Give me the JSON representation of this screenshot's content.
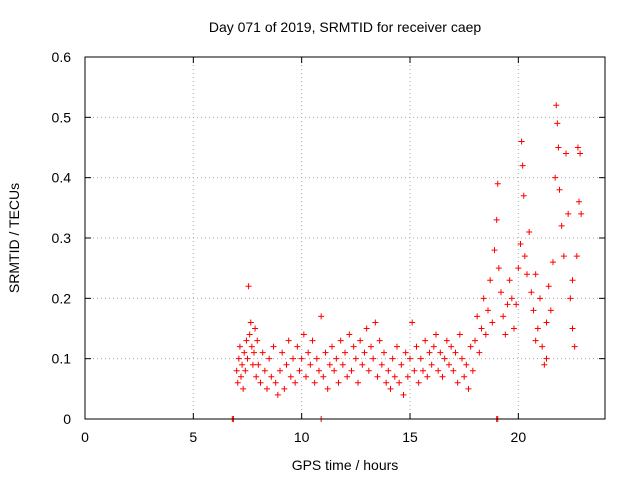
{
  "chart_data": {
    "type": "scatter",
    "title": "Day 071 of 2019, SRMTID for receiver caep",
    "xlabel": "GPS time / hours",
    "ylabel": "SRMTID / TECUs",
    "xlim": [
      0,
      24
    ],
    "ylim": [
      0,
      0.6
    ],
    "xticks": [
      0,
      5,
      10,
      15,
      20
    ],
    "yticks": [
      0,
      0.1,
      0.2,
      0.3,
      0.4,
      0.5,
      0.6
    ],
    "grid": true,
    "marker": "+",
    "colors": {
      "series": "#ff0000",
      "grid": "#aaaaaa",
      "axis": "#000000"
    },
    "series": [
      {
        "name": "SRMTID",
        "points": [
          [
            6.8,
            0.0
          ],
          [
            6.85,
            0.0
          ],
          [
            10.9,
            0.0
          ],
          [
            19.0,
            0.0
          ],
          [
            19.05,
            0.0
          ],
          [
            7.0,
            0.08
          ],
          [
            7.05,
            0.06
          ],
          [
            7.1,
            0.1
          ],
          [
            7.15,
            0.12
          ],
          [
            7.2,
            0.07
          ],
          [
            7.25,
            0.09
          ],
          [
            7.3,
            0.05
          ],
          [
            7.35,
            0.11
          ],
          [
            7.4,
            0.08
          ],
          [
            7.45,
            0.13
          ],
          [
            7.5,
            0.1
          ],
          [
            7.55,
            0.22
          ],
          [
            7.6,
            0.14
          ],
          [
            7.65,
            0.16
          ],
          [
            7.7,
            0.12
          ],
          [
            7.75,
            0.09
          ],
          [
            7.8,
            0.11
          ],
          [
            7.85,
            0.15
          ],
          [
            7.9,
            0.07
          ],
          [
            7.95,
            0.13
          ],
          [
            8.0,
            0.09
          ],
          [
            8.1,
            0.06
          ],
          [
            8.2,
            0.11
          ],
          [
            8.3,
            0.08
          ],
          [
            8.4,
            0.05
          ],
          [
            8.5,
            0.1
          ],
          [
            8.6,
            0.07
          ],
          [
            8.7,
            0.12
          ],
          [
            8.8,
            0.06
          ],
          [
            8.9,
            0.04
          ],
          [
            9.0,
            0.08
          ],
          [
            9.1,
            0.11
          ],
          [
            9.2,
            0.05
          ],
          [
            9.3,
            0.09
          ],
          [
            9.4,
            0.13
          ],
          [
            9.5,
            0.07
          ],
          [
            9.6,
            0.1
          ],
          [
            9.7,
            0.06
          ],
          [
            9.8,
            0.12
          ],
          [
            9.9,
            0.08
          ],
          [
            10.0,
            0.1
          ],
          [
            10.1,
            0.14
          ],
          [
            10.2,
            0.07
          ],
          [
            10.3,
            0.11
          ],
          [
            10.4,
            0.09
          ],
          [
            10.5,
            0.13
          ],
          [
            10.6,
            0.06
          ],
          [
            10.7,
            0.1
          ],
          [
            10.8,
            0.08
          ],
          [
            10.9,
            0.17
          ],
          [
            11.0,
            0.07
          ],
          [
            11.1,
            0.11
          ],
          [
            11.2,
            0.05
          ],
          [
            11.3,
            0.09
          ],
          [
            11.4,
            0.12
          ],
          [
            11.5,
            0.08
          ],
          [
            11.6,
            0.1
          ],
          [
            11.7,
            0.06
          ],
          [
            11.8,
            0.13
          ],
          [
            11.9,
            0.09
          ],
          [
            12.0,
            0.11
          ],
          [
            12.1,
            0.07
          ],
          [
            12.2,
            0.14
          ],
          [
            12.3,
            0.08
          ],
          [
            12.4,
            0.12
          ],
          [
            12.5,
            0.1
          ],
          [
            12.6,
            0.06
          ],
          [
            12.7,
            0.13
          ],
          [
            12.8,
            0.09
          ],
          [
            12.9,
            0.11
          ],
          [
            13.0,
            0.15
          ],
          [
            13.1,
            0.08
          ],
          [
            13.2,
            0.12
          ],
          [
            13.3,
            0.1
          ],
          [
            13.4,
            0.16
          ],
          [
            13.5,
            0.07
          ],
          [
            13.6,
            0.13
          ],
          [
            13.7,
            0.09
          ],
          [
            13.8,
            0.11
          ],
          [
            13.9,
            0.06
          ],
          [
            14.0,
            0.08
          ],
          [
            14.1,
            0.05
          ],
          [
            14.2,
            0.1
          ],
          [
            14.3,
            0.07
          ],
          [
            14.4,
            0.12
          ],
          [
            14.5,
            0.06
          ],
          [
            14.6,
            0.09
          ],
          [
            14.7,
            0.04
          ],
          [
            14.8,
            0.11
          ],
          [
            14.9,
            0.07
          ],
          [
            15.0,
            0.1
          ],
          [
            15.1,
            0.16
          ],
          [
            15.2,
            0.08
          ],
          [
            15.3,
            0.12
          ],
          [
            15.4,
            0.06
          ],
          [
            15.5,
            0.1
          ],
          [
            15.6,
            0.08
          ],
          [
            15.7,
            0.13
          ],
          [
            15.8,
            0.07
          ],
          [
            15.9,
            0.11
          ],
          [
            16.0,
            0.09
          ],
          [
            16.1,
            0.12
          ],
          [
            16.2,
            0.14
          ],
          [
            16.3,
            0.08
          ],
          [
            16.4,
            0.11
          ],
          [
            16.5,
            0.07
          ],
          [
            16.6,
            0.1
          ],
          [
            16.7,
            0.13
          ],
          [
            16.8,
            0.09
          ],
          [
            16.9,
            0.12
          ],
          [
            17.0,
            0.08
          ],
          [
            17.1,
            0.11
          ],
          [
            17.2,
            0.06
          ],
          [
            17.3,
            0.14
          ],
          [
            17.4,
            0.1
          ],
          [
            17.5,
            0.07
          ],
          [
            17.6,
            0.09
          ],
          [
            17.7,
            0.05
          ],
          [
            17.8,
            0.12
          ],
          [
            17.9,
            0.08
          ],
          [
            18.0,
            0.13
          ],
          [
            18.1,
            0.17
          ],
          [
            18.2,
            0.11
          ],
          [
            18.3,
            0.15
          ],
          [
            18.4,
            0.2
          ],
          [
            18.5,
            0.14
          ],
          [
            18.6,
            0.18
          ],
          [
            18.7,
            0.23
          ],
          [
            18.8,
            0.16
          ],
          [
            18.9,
            0.28
          ],
          [
            19.0,
            0.33
          ],
          [
            19.05,
            0.39
          ],
          [
            19.1,
            0.25
          ],
          [
            19.2,
            0.21
          ],
          [
            19.3,
            0.17
          ],
          [
            19.4,
            0.14
          ],
          [
            19.5,
            0.19
          ],
          [
            19.6,
            0.23
          ],
          [
            19.7,
            0.2
          ],
          [
            19.8,
            0.15
          ],
          [
            19.9,
            0.19
          ],
          [
            20.0,
            0.25
          ],
          [
            20.1,
            0.29
          ],
          [
            20.15,
            0.46
          ],
          [
            20.2,
            0.42
          ],
          [
            20.25,
            0.37
          ],
          [
            20.3,
            0.27
          ],
          [
            20.4,
            0.24
          ],
          [
            20.5,
            0.31
          ],
          [
            20.6,
            0.21
          ],
          [
            20.7,
            0.18
          ],
          [
            20.8,
            0.24
          ],
          [
            20.9,
            0.15
          ],
          [
            21.0,
            0.2
          ],
          [
            21.1,
            0.12
          ],
          [
            21.2,
            0.09
          ],
          [
            21.3,
            0.16
          ],
          [
            21.4,
            0.22
          ],
          [
            21.5,
            0.18
          ],
          [
            21.6,
            0.26
          ],
          [
            21.7,
            0.4
          ],
          [
            21.75,
            0.52
          ],
          [
            21.8,
            0.49
          ],
          [
            21.85,
            0.45
          ],
          [
            21.9,
            0.38
          ],
          [
            22.0,
            0.32
          ],
          [
            22.1,
            0.27
          ],
          [
            22.2,
            0.44
          ],
          [
            22.3,
            0.34
          ],
          [
            22.4,
            0.2
          ],
          [
            22.5,
            0.15
          ],
          [
            22.6,
            0.12
          ],
          [
            22.7,
            0.27
          ],
          [
            22.75,
            0.45
          ],
          [
            22.8,
            0.36
          ],
          [
            22.85,
            0.44
          ],
          [
            22.9,
            0.34
          ],
          [
            22.5,
            0.23
          ],
          [
            21.3,
            0.1
          ],
          [
            20.8,
            0.13
          ]
        ]
      }
    ]
  }
}
